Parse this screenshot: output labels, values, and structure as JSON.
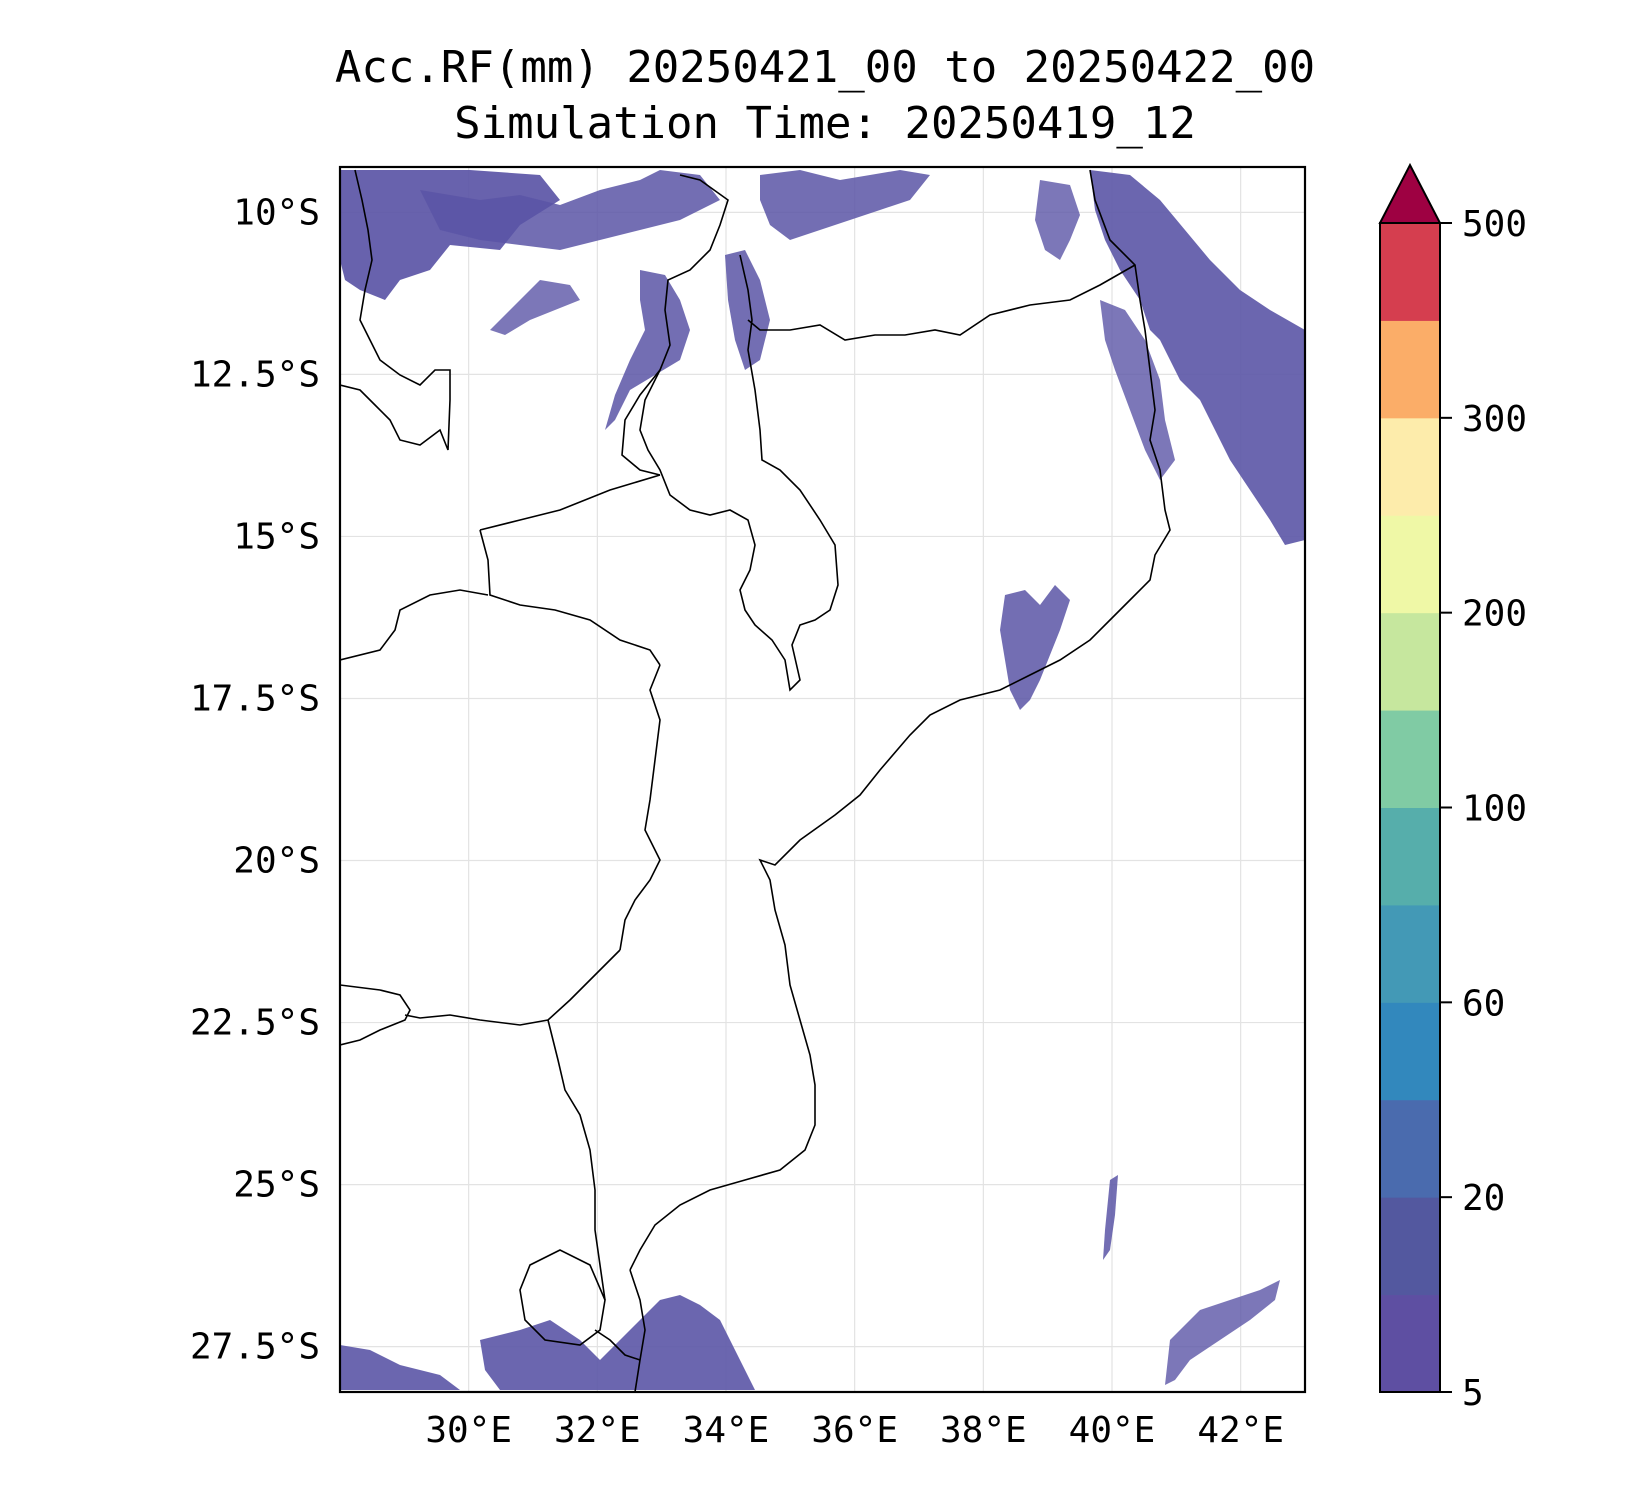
{
  "title_line1": "Acc.RF(mm) 20250421_00 to 20250422_00",
  "title_line2": "Simulation Time: 20250419_12",
  "map": {
    "lon_range": [
      28,
      43
    ],
    "lat_range": [
      -28.2,
      -9.3
    ],
    "lat_ticks": [
      {
        "value": -10,
        "label": "10°S"
      },
      {
        "value": -12.5,
        "label": "12.5°S"
      },
      {
        "value": -15,
        "label": "15°S"
      },
      {
        "value": -17.5,
        "label": "17.5°S"
      },
      {
        "value": -20,
        "label": "20°S"
      },
      {
        "value": -22.5,
        "label": "22.5°S"
      },
      {
        "value": -25,
        "label": "25°S"
      },
      {
        "value": -27.5,
        "label": "27.5°S"
      }
    ],
    "lon_ticks": [
      {
        "value": 30,
        "label": "30°E"
      },
      {
        "value": 32,
        "label": "32°E"
      },
      {
        "value": 34,
        "label": "34°E"
      },
      {
        "value": 36,
        "label": "36°E"
      },
      {
        "value": 38,
        "label": "38°E"
      },
      {
        "value": 40,
        "label": "40°E"
      },
      {
        "value": 42,
        "label": "42°E"
      }
    ],
    "grid": true
  },
  "colorbar": {
    "levels": [
      5,
      10,
      20,
      40,
      60,
      80,
      100,
      150,
      200,
      250,
      300,
      400,
      500
    ],
    "labels": [
      "5",
      "20",
      "60",
      "100",
      "200",
      "300",
      "500"
    ],
    "colors": [
      "#5e4fa2",
      "#53589f",
      "#4a6bae",
      "#3288bd",
      "#4399b6",
      "#56aeab",
      "#80cba4",
      "#c6e79e",
      "#eff8a6",
      "#fdecab",
      "#fbad68",
      "#d53e4f"
    ],
    "extend_color": "#9e0142",
    "extend": "max"
  },
  "rain_color": "#5b55a6"
}
